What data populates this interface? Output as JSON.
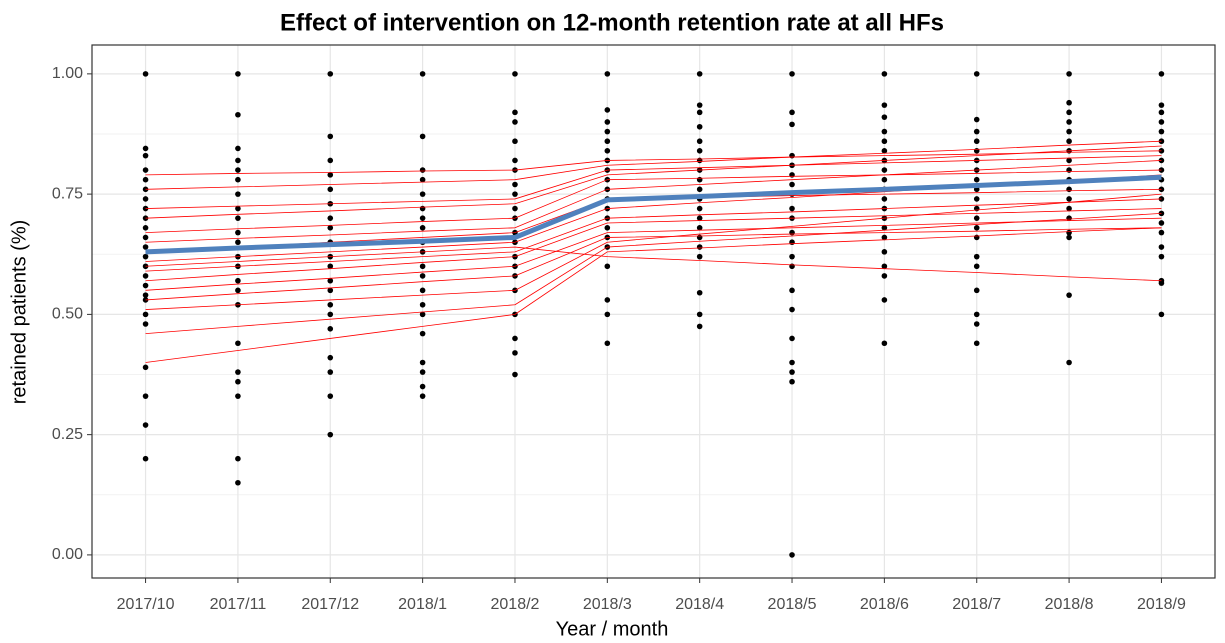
{
  "chart_data": {
    "type": "scatter",
    "title": "Effect of intervention on 12-month retention rate at all HFs",
    "x_label": "Year / month",
    "y_label": "retained patients (%)",
    "categories": [
      "2017/10",
      "2017/11",
      "2017/12",
      "2018/1",
      "2018/2",
      "2018/3",
      "2018/4",
      "2018/5",
      "2018/6",
      "2018/7",
      "2018/8",
      "2018/9"
    ],
    "ylim": [
      -0.048,
      1.06
    ],
    "yticks": [
      {
        "value": 0,
        "label": "0.00"
      },
      {
        "value": 0.25,
        "label": "0.25"
      },
      {
        "value": 0.5,
        "label": "0.50"
      },
      {
        "value": 0.75,
        "label": "0.75"
      },
      {
        "value": 1,
        "label": "1.00"
      }
    ],
    "y_minor_ticks": [
      0.125,
      0.375,
      0.625,
      0.875
    ],
    "grid": true,
    "point_color": "#000000",
    "points": [
      [
        1,
        0.845,
        0.83,
        0.8,
        0.78,
        0.76,
        0.74,
        0.72,
        0.7,
        0.68,
        0.66,
        0.64,
        0.62,
        0.6,
        0.58,
        0.56,
        0.54,
        0.53,
        0.5,
        0.48,
        0.39,
        0.33,
        0.27,
        0.2
      ],
      [
        1,
        0.915,
        0.845,
        0.82,
        0.8,
        0.78,
        0.75,
        0.72,
        0.7,
        0.67,
        0.65,
        0.62,
        0.6,
        0.57,
        0.55,
        0.52,
        0.44,
        0.38,
        0.36,
        0.33,
        0.2,
        0.15
      ],
      [
        1,
        0.87,
        0.82,
        0.79,
        0.76,
        0.73,
        0.7,
        0.68,
        0.65,
        0.62,
        0.6,
        0.57,
        0.55,
        0.52,
        0.5,
        0.47,
        0.41,
        0.38,
        0.33,
        0.25
      ],
      [
        1,
        0.87,
        0.8,
        0.78,
        0.75,
        0.72,
        0.7,
        0.68,
        0.65,
        0.63,
        0.6,
        0.58,
        0.55,
        0.52,
        0.5,
        0.46,
        0.4,
        0.38,
        0.35,
        0.33
      ],
      [
        1,
        0.92,
        0.9,
        0.86,
        0.82,
        0.8,
        0.77,
        0.75,
        0.72,
        0.7,
        0.67,
        0.65,
        0.62,
        0.6,
        0.58,
        0.55,
        0.5,
        0.45,
        0.42,
        0.375
      ],
      [
        1,
        0.925,
        0.9,
        0.88,
        0.86,
        0.84,
        0.82,
        0.8,
        0.78,
        0.76,
        0.74,
        0.72,
        0.7,
        0.68,
        0.66,
        0.64,
        0.6,
        0.53,
        0.5,
        0.44
      ],
      [
        1,
        0.935,
        0.92,
        0.89,
        0.86,
        0.84,
        0.82,
        0.8,
        0.78,
        0.76,
        0.74,
        0.72,
        0.7,
        0.68,
        0.66,
        0.64,
        0.62,
        0.545,
        0.5,
        0.475
      ],
      [
        1,
        0.92,
        0.895,
        0.83,
        0.81,
        0.79,
        0.77,
        0.75,
        0.72,
        0.7,
        0.67,
        0.65,
        0.62,
        0.6,
        0.55,
        0.51,
        0.45,
        0.4,
        0.38,
        0.36,
        0
      ],
      [
        1,
        0.935,
        0.91,
        0.88,
        0.86,
        0.84,
        0.82,
        0.8,
        0.78,
        0.76,
        0.74,
        0.72,
        0.7,
        0.68,
        0.66,
        0.63,
        0.6,
        0.58,
        0.53,
        0.44
      ],
      [
        1,
        0.905,
        0.88,
        0.86,
        0.84,
        0.82,
        0.8,
        0.78,
        0.76,
        0.74,
        0.72,
        0.7,
        0.68,
        0.66,
        0.62,
        0.6,
        0.55,
        0.5,
        0.48,
        0.44
      ],
      [
        1,
        0.94,
        0.92,
        0.9,
        0.88,
        0.86,
        0.84,
        0.82,
        0.8,
        0.78,
        0.76,
        0.74,
        0.72,
        0.7,
        0.67,
        0.66,
        0.54,
        0.4
      ],
      [
        1,
        0.935,
        0.92,
        0.9,
        0.88,
        0.86,
        0.84,
        0.82,
        0.8,
        0.78,
        0.76,
        0.74,
        0.71,
        0.69,
        0.67,
        0.64,
        0.62,
        0.57,
        0.565,
        0.5
      ]
    ],
    "facility_color": "#ff0000",
    "facility_lines": [
      [
        0.79,
        0.793,
        0.795,
        0.798,
        0.8,
        0.82,
        0.823,
        0.827,
        0.83,
        0.833,
        0.837,
        0.84
      ],
      [
        0.76,
        0.765,
        0.77,
        0.775,
        0.78,
        0.81,
        0.818,
        0.827,
        0.835,
        0.843,
        0.852,
        0.86
      ],
      [
        0.72,
        0.725,
        0.73,
        0.735,
        0.74,
        0.8,
        0.805,
        0.81,
        0.815,
        0.82,
        0.825,
        0.83
      ],
      [
        0.7,
        0.708,
        0.715,
        0.723,
        0.73,
        0.79,
        0.8,
        0.81,
        0.82,
        0.83,
        0.84,
        0.85
      ],
      [
        0.67,
        0.678,
        0.685,
        0.693,
        0.7,
        0.78,
        0.783,
        0.787,
        0.79,
        0.793,
        0.797,
        0.8
      ],
      [
        0.65,
        0.658,
        0.665,
        0.673,
        0.68,
        0.76,
        0.77,
        0.78,
        0.79,
        0.8,
        0.81,
        0.82
      ],
      [
        0.63,
        0.64,
        0.65,
        0.66,
        0.67,
        0.74,
        0.743,
        0.747,
        0.75,
        0.753,
        0.757,
        0.76
      ],
      [
        0.61,
        0.62,
        0.63,
        0.64,
        0.65,
        0.72,
        0.732,
        0.743,
        0.755,
        0.767,
        0.778,
        0.79
      ],
      [
        0.59,
        0.6,
        0.61,
        0.62,
        0.63,
        0.7,
        0.707,
        0.713,
        0.72,
        0.727,
        0.733,
        0.74
      ],
      [
        0.57,
        0.583,
        0.595,
        0.608,
        0.62,
        0.69,
        0.695,
        0.7,
        0.705,
        0.71,
        0.715,
        0.72
      ],
      [
        0.55,
        0.563,
        0.575,
        0.588,
        0.6,
        0.67,
        0.675,
        0.68,
        0.685,
        0.69,
        0.695,
        0.7
      ],
      [
        0.53,
        0.543,
        0.555,
        0.568,
        0.58,
        0.66,
        0.663,
        0.667,
        0.67,
        0.673,
        0.677,
        0.68
      ],
      [
        0.51,
        0.52,
        0.53,
        0.54,
        0.55,
        0.65,
        0.667,
        0.683,
        0.7,
        0.717,
        0.733,
        0.75
      ],
      [
        0.46,
        0.475,
        0.49,
        0.505,
        0.52,
        0.64,
        0.652,
        0.663,
        0.675,
        0.687,
        0.698,
        0.71
      ],
      [
        0.4,
        0.425,
        0.45,
        0.475,
        0.5,
        0.63,
        0.638,
        0.647,
        0.655,
        0.663,
        0.672,
        0.68
      ],
      [
        0.6,
        0.61,
        0.62,
        0.63,
        0.64,
        0.62,
        0.612,
        0.603,
        0.595,
        0.587,
        0.578,
        0.57
      ]
    ],
    "mean_color": "#4f81bd",
    "mean_line": [
      0.63,
      0.638,
      0.645,
      0.652,
      0.66,
      0.738,
      0.745,
      0.753,
      0.76,
      0.768,
      0.776,
      0.785
    ]
  }
}
